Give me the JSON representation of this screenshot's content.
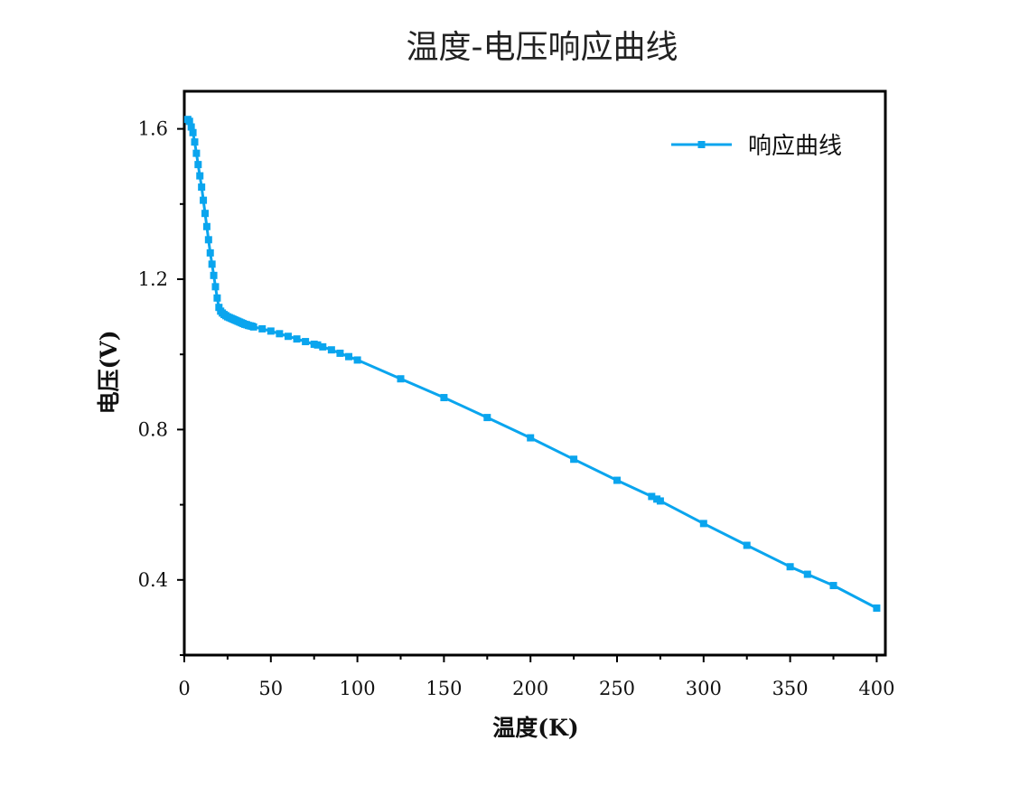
{
  "chart_data": {
    "type": "line",
    "title": "温度-电压响应曲线",
    "xlabel": "温度(K)",
    "ylabel": "电压(V)",
    "xlim": [
      0,
      405
    ],
    "ylim": [
      0.2,
      1.7
    ],
    "xticks": [
      0,
      50,
      100,
      150,
      200,
      250,
      300,
      350,
      400
    ],
    "xtick_labels": [
      "0",
      "50",
      "100",
      "150",
      "200",
      "250",
      "300",
      "350",
      "400"
    ],
    "yticks": [
      0.4,
      0.8,
      1.2,
      1.6
    ],
    "ytick_labels": [
      "0.4",
      "0.8",
      "1.2",
      "1.6"
    ],
    "grid": false,
    "legend_position": "top-right",
    "colors": {
      "series": "#0aa5ee",
      "axes": "#000000"
    },
    "series": [
      {
        "name": "响应曲线",
        "marker": "square",
        "x": [
          2,
          3,
          4,
          5,
          6,
          7,
          8,
          9,
          10,
          11,
          12,
          13,
          14,
          15,
          16,
          17,
          18,
          19,
          20,
          21,
          22,
          23,
          24,
          25,
          26,
          27,
          28,
          29,
          30,
          31,
          32,
          33,
          34,
          35,
          36,
          37,
          38,
          39,
          40,
          45,
          50,
          55,
          60,
          65,
          70,
          75,
          77,
          80,
          85,
          90,
          95,
          100,
          125,
          150,
          175,
          200,
          225,
          250,
          270,
          273,
          275,
          300,
          325,
          350,
          360,
          375,
          400
        ],
        "y": [
          1.625,
          1.62,
          1.605,
          1.59,
          1.565,
          1.535,
          1.505,
          1.475,
          1.445,
          1.41,
          1.375,
          1.34,
          1.305,
          1.27,
          1.24,
          1.21,
          1.18,
          1.15,
          1.125,
          1.115,
          1.11,
          1.106,
          1.103,
          1.1,
          1.098,
          1.096,
          1.094,
          1.092,
          1.09,
          1.088,
          1.086,
          1.084,
          1.082,
          1.08,
          1.079,
          1.077,
          1.076,
          1.075,
          1.073,
          1.068,
          1.062,
          1.055,
          1.048,
          1.041,
          1.034,
          1.027,
          1.025,
          1.02,
          1.012,
          1.003,
          0.994,
          0.985,
          0.935,
          0.885,
          0.832,
          0.778,
          0.721,
          0.665,
          0.622,
          0.615,
          0.61,
          0.55,
          0.492,
          0.435,
          0.415,
          0.385,
          0.325
        ]
      }
    ]
  }
}
